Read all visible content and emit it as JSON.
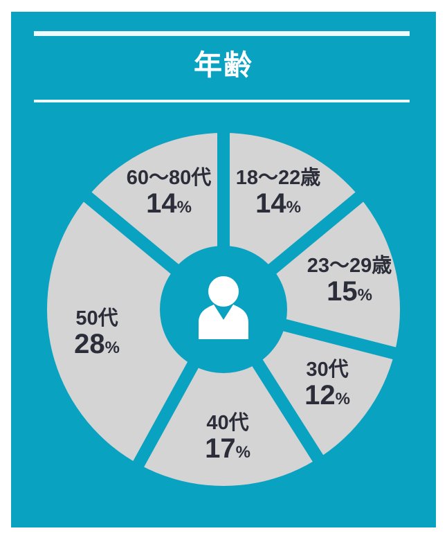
{
  "colors": {
    "background": "#ffffff",
    "card": "#09a2c1",
    "slice": "#d4d4d5",
    "text": "#2b2d39",
    "title": "#ffffff",
    "rule": "#eefafc",
    "icon": "#ffffff"
  },
  "header": {
    "title": "年齢"
  },
  "chart_data": {
    "type": "pie",
    "title": "年齢",
    "style": "donut-with-center-hole",
    "categories": [
      "18〜22歳",
      "23〜29歳",
      "30代",
      "40代",
      "50代",
      "60〜80代"
    ],
    "values": [
      14,
      15,
      12,
      17,
      28,
      14
    ],
    "unit": "%",
    "start_angle_deg": 0,
    "direction": "clockwise",
    "labels_inside_slices": true,
    "center_icon": "person",
    "legend": "none",
    "grid": false
  }
}
